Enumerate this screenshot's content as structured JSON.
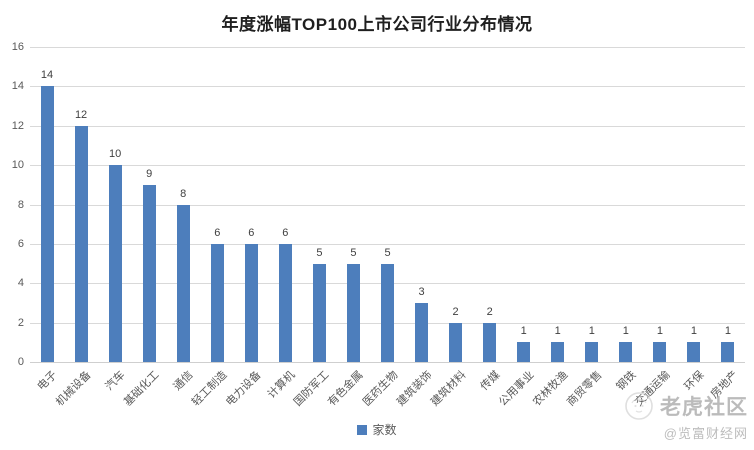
{
  "chart_data": {
    "type": "bar",
    "title": "年度涨幅TOP100上市公司行业分布情况",
    "categories": [
      "电子",
      "机械设备",
      "汽车",
      "基础化工",
      "通信",
      "轻工制造",
      "电力设备",
      "计算机",
      "国防军工",
      "有色金属",
      "医药生物",
      "建筑装饰",
      "建筑材料",
      "传媒",
      "公用事业",
      "农林牧渔",
      "商贸零售",
      "钢铁",
      "交通运输",
      "环保",
      "房地产"
    ],
    "values": [
      14,
      12,
      10,
      9,
      8,
      6,
      6,
      6,
      5,
      5,
      5,
      3,
      2,
      2,
      1,
      1,
      1,
      1,
      1,
      1,
      1
    ],
    "series_name": "家数",
    "xlabel": "",
    "ylabel": "",
    "ylim": [
      0,
      16
    ],
    "ytick_step": 2,
    "grid": true,
    "legend_position": "bottom",
    "data_labels": true
  },
  "legend": {
    "label": "家数"
  },
  "watermark": {
    "community": "老虎社区",
    "handle": "@览富财经网",
    "logo": "tiger-logo-icon"
  },
  "colors": {
    "bar": "#4d7ebc",
    "gridline": "#d9d9d9",
    "axis_text": "#595959",
    "value_label": "#404040",
    "title_text": "#1f1f1f",
    "watermark_text": "#ababab"
  }
}
